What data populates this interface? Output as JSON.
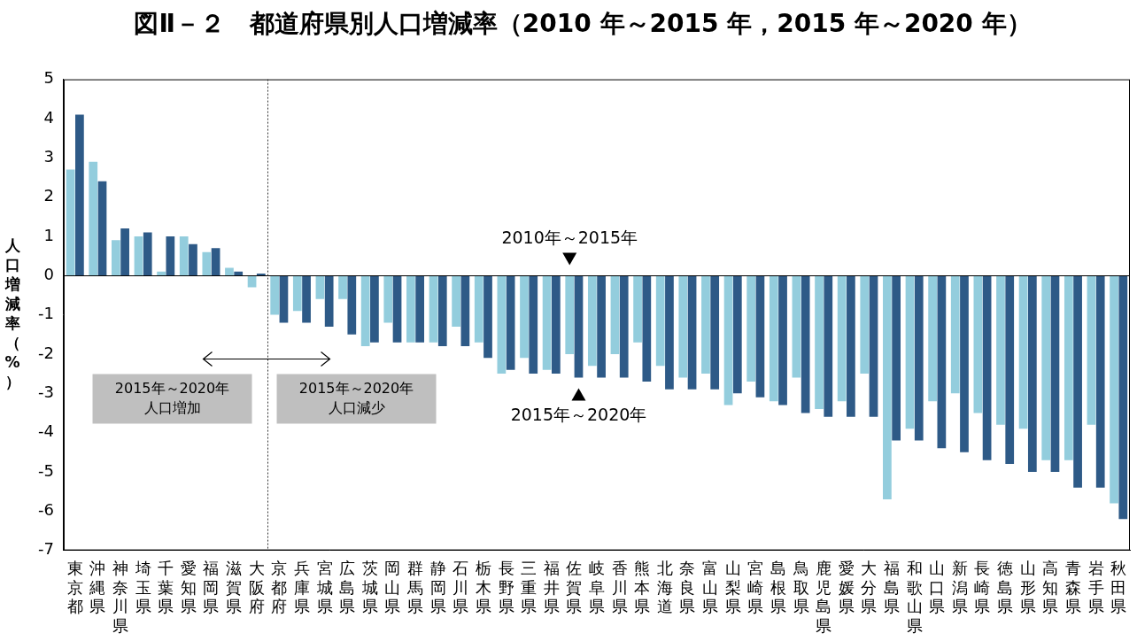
{
  "chart_data": {
    "type": "bar",
    "title": "図Ⅱ－２　都道府県別人口増減率（2010 年～2015 年，2015 年～2020 年）",
    "y_label": "人口増減率（%）",
    "categories": [
      "東京都",
      "沖縄県",
      "神奈川県",
      "埼玉県",
      "千葉県",
      "愛知県",
      "福岡県",
      "滋賀県",
      "大阪府",
      "京都府",
      "兵庫県",
      "宮城県",
      "広島県",
      "茨城県",
      "岡山県",
      "群馬県",
      "静岡県",
      "石川県",
      "栃木県",
      "長野県",
      "三重県",
      "福井県",
      "佐賀県",
      "岐阜県",
      "香川県",
      "熊本県",
      "北海道",
      "奈良県",
      "富山県",
      "山梨県",
      "宮崎県",
      "島根県",
      "鳥取県",
      "鹿児島県",
      "愛媛県",
      "大分県",
      "福島県",
      "和歌山県",
      "山口県",
      "新潟県",
      "長崎県",
      "徳島県",
      "山形県",
      "高知県",
      "青森県",
      "岩手県",
      "秋田県"
    ],
    "series": [
      {
        "name": "2010年～2015年",
        "color": "#93cddd",
        "values": [
          2.7,
          2.9,
          0.9,
          1.0,
          0.1,
          1.0,
          0.6,
          0.2,
          -0.3,
          -1.0,
          -0.9,
          -0.6,
          -0.6,
          -1.8,
          -1.2,
          -1.7,
          -1.7,
          -1.3,
          -1.7,
          -2.5,
          -2.1,
          -2.4,
          -2.0,
          -2.3,
          -2.0,
          -1.7,
          -2.3,
          -2.6,
          -2.5,
          -3.3,
          -2.7,
          -3.2,
          -2.6,
          -3.4,
          -3.2,
          -2.5,
          -5.7,
          -3.9,
          -3.2,
          -3.0,
          -3.5,
          -3.8,
          -3.9,
          -4.7,
          -4.7,
          -3.8,
          -5.8
        ]
      },
      {
        "name": "2015年～2020年",
        "color": "#2e5a87",
        "values": [
          4.1,
          2.4,
          1.2,
          1.1,
          1.0,
          0.8,
          0.7,
          0.1,
          0.05,
          -1.2,
          -1.2,
          -1.3,
          -1.5,
          -1.7,
          -1.7,
          -1.7,
          -1.8,
          -1.8,
          -2.1,
          -2.4,
          -2.5,
          -2.5,
          -2.6,
          -2.6,
          -2.6,
          -2.7,
          -2.9,
          -2.9,
          -2.9,
          -3.0,
          -3.1,
          -3.3,
          -3.5,
          -3.6,
          -3.6,
          -3.6,
          -4.2,
          -4.2,
          -4.4,
          -4.5,
          -4.7,
          -4.8,
          -5.0,
          -5.0,
          -5.4,
          -5.4,
          -6.2
        ]
      }
    ],
    "ylim": [
      -7,
      5
    ],
    "yticks": [
      -7,
      -6,
      -5,
      -4,
      -3,
      -2,
      -1,
      0,
      1,
      2,
      3,
      4,
      5
    ],
    "grid": false,
    "annotations": [
      "2015年～2020年\n人口増加",
      "2015年～2020年\n人口減少"
    ]
  }
}
